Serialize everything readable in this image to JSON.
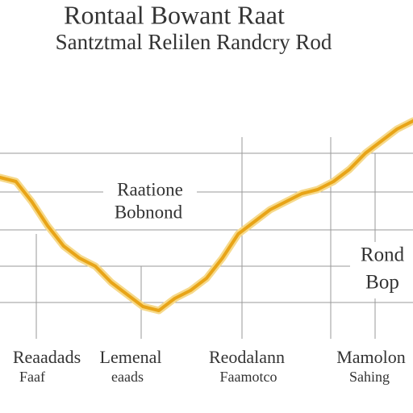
{
  "chart_data": {
    "type": "line",
    "title": "Rontaal Bowant Raat",
    "subtitle": "Santztmal Relilen Randcry Rod",
    "values": [
      180,
      175,
      150,
      120,
      95,
      80,
      70,
      50,
      35,
      20,
      15,
      30,
      40,
      55,
      80,
      110,
      125,
      140,
      150,
      160,
      165,
      175,
      190,
      210,
      225,
      240,
      250
    ],
    "color": "#e8a417",
    "annotations": [
      [
        "Raatione",
        "Bobnond"
      ],
      [
        "Rond",
        "Bop"
      ]
    ],
    "x_labels": [
      [
        "Reaadads",
        "Faaf"
      ],
      [
        "Lemenal",
        "eaads"
      ],
      [
        "Reodalann",
        "Faamotco"
      ],
      [
        "Mamolon",
        "Sahing"
      ]
    ]
  }
}
